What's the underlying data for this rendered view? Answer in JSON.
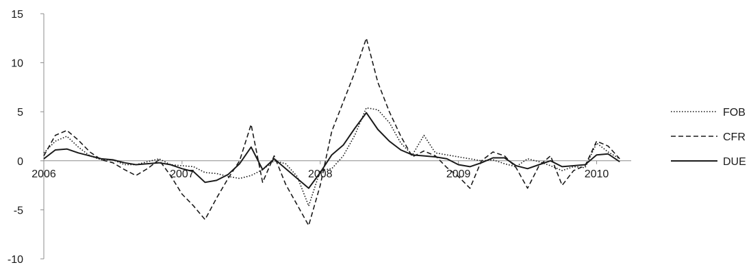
{
  "chart_data": {
    "type": "line",
    "title": "",
    "xlabel": "",
    "ylabel": "",
    "xlim": [
      2006.0,
      2010.25
    ],
    "ylim": [
      -10,
      15
    ],
    "x_ticks": [
      2006,
      2007,
      2008,
      2009,
      2010
    ],
    "x_tick_labels": [
      "2006",
      "2007",
      "2008",
      "2009",
      "2010"
    ],
    "y_ticks": [
      15,
      10,
      5,
      0,
      -5,
      -10
    ],
    "y_tick_labels": [
      "15",
      "10",
      "5",
      "0",
      "-5",
      "-10"
    ],
    "grid": false,
    "legend_position": "right",
    "x": [
      2006.0,
      2006.0833,
      2006.1667,
      2006.25,
      2006.3333,
      2006.4167,
      2006.5,
      2006.5833,
      2006.6667,
      2006.75,
      2006.8333,
      2006.9167,
      2007.0,
      2007.0833,
      2007.1667,
      2007.25,
      2007.3333,
      2007.4167,
      2007.5,
      2007.5833,
      2007.6667,
      2007.75,
      2007.8333,
      2007.9167,
      2008.0,
      2008.0833,
      2008.1667,
      2008.25,
      2008.3333,
      2008.4167,
      2008.5,
      2008.5833,
      2008.6667,
      2008.75,
      2008.8333,
      2008.9167,
      2009.0,
      2009.0833,
      2009.1667,
      2009.25,
      2009.3333,
      2009.4167,
      2009.5,
      2009.5833,
      2009.6667,
      2009.75,
      2009.8333,
      2009.9167,
      2010.0,
      2010.0833,
      2010.1667
    ],
    "series": [
      {
        "name": "FOB",
        "dash": "dotted",
        "color": "#1a1a1a",
        "values": [
          0.8,
          2.0,
          2.5,
          1.4,
          0.5,
          0.1,
          0.1,
          -0.4,
          -0.4,
          -0.1,
          0.2,
          -0.4,
          -0.5,
          -0.6,
          -1.2,
          -1.3,
          -1.6,
          -1.8,
          -1.5,
          -0.9,
          0.0,
          -0.3,
          -1.6,
          -4.6,
          -1.0,
          -0.8,
          0.5,
          2.6,
          5.4,
          5.2,
          3.9,
          1.8,
          0.6,
          2.6,
          0.8,
          0.6,
          0.4,
          0.2,
          0.0,
          0.1,
          -0.3,
          -0.6,
          0.2,
          -0.1,
          -0.5,
          -1.0,
          -0.6,
          -0.7,
          1.8,
          0.9,
          0.2
        ]
      },
      {
        "name": "CFR",
        "dash": "dashed",
        "color": "#1a1a1a",
        "values": [
          0.5,
          2.6,
          3.1,
          2.1,
          0.9,
          0.1,
          -0.2,
          -0.9,
          -1.5,
          -0.8,
          0.1,
          -1.5,
          -3.4,
          -4.6,
          -6.0,
          -3.8,
          -1.8,
          0.0,
          3.7,
          -2.2,
          0.5,
          -2.4,
          -4.5,
          -6.6,
          -2.5,
          3.0,
          6.0,
          9.0,
          12.5,
          8.0,
          5.0,
          2.5,
          0.4,
          1.0,
          0.5,
          -0.7,
          -1.6,
          -2.8,
          0.0,
          0.9,
          0.5,
          -0.7,
          -2.8,
          -0.5,
          0.5,
          -2.5,
          -1.0,
          -0.5,
          2.0,
          1.5,
          0.2
        ]
      },
      {
        "name": "DUE",
        "dash": "solid",
        "color": "#1a1a1a",
        "values": [
          0.2,
          1.1,
          1.2,
          0.8,
          0.5,
          0.2,
          0.1,
          -0.2,
          -0.4,
          -0.3,
          -0.2,
          -0.4,
          -0.8,
          -1.1,
          -2.2,
          -2.0,
          -1.4,
          -0.3,
          1.4,
          -0.9,
          0.2,
          -0.8,
          -1.8,
          -2.8,
          -1.2,
          0.6,
          1.6,
          3.3,
          4.9,
          3.2,
          2.0,
          1.1,
          0.6,
          0.5,
          0.4,
          0.2,
          -0.4,
          -0.6,
          -0.2,
          0.3,
          0.3,
          -0.5,
          -0.8,
          -0.4,
          0.0,
          -0.6,
          -0.5,
          -0.4,
          0.6,
          0.7,
          -0.1
        ]
      }
    ]
  }
}
